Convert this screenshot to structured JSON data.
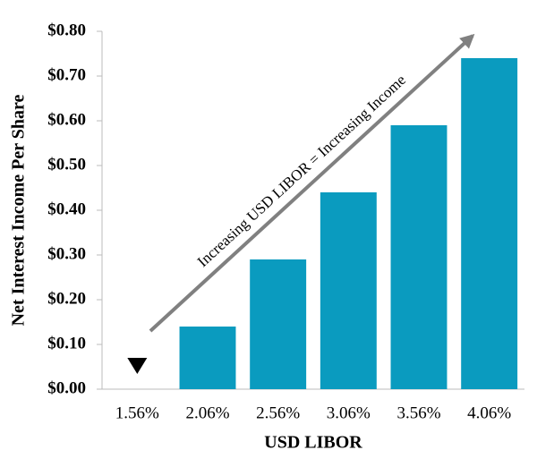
{
  "chart_data": {
    "type": "bar",
    "x_label": "USD LIBOR",
    "y_label": "Net Interest Income Per Share",
    "annotation": "Increasing USD LIBOR = Increasing Income",
    "categories": [
      "1.56%",
      "2.06%",
      "2.56%",
      "3.06%",
      "3.56%",
      "4.06%"
    ],
    "values": [
      0,
      0.14,
      0.29,
      0.44,
      0.59,
      0.74
    ],
    "color": "#0a9bbf",
    "ylim": [
      0,
      0.8
    ],
    "yticks": [
      {
        "value": 0,
        "label": "$0.00"
      },
      {
        "value": 0.1,
        "label": "$0.10"
      },
      {
        "value": 0.2,
        "label": "$0.20"
      },
      {
        "value": 0.3,
        "label": "$0.30"
      },
      {
        "value": 0.4,
        "label": "$0.40"
      },
      {
        "value": 0.5,
        "label": "$0.50"
      },
      {
        "value": 0.6,
        "label": "$0.60"
      },
      {
        "value": 0.7,
        "label": "$0.70"
      },
      {
        "value": 0.8,
        "label": "$0.80"
      }
    ],
    "grid": false
  }
}
